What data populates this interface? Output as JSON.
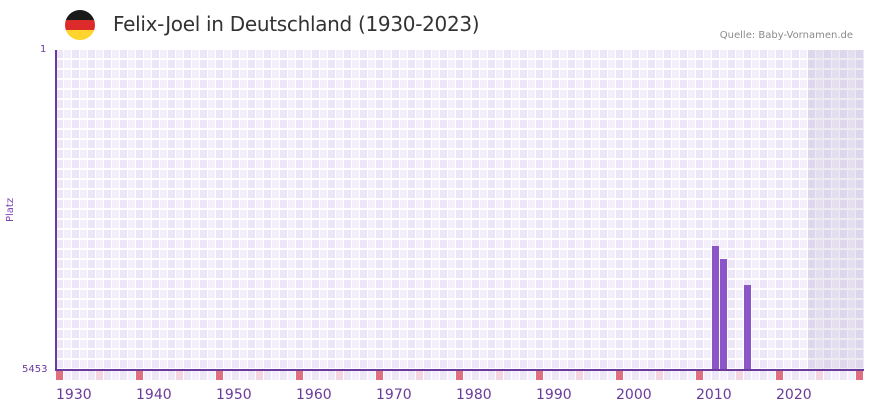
{
  "header": {
    "title": "Felix-Joel in Deutschland (1930-2023)",
    "source": "Quelle: Baby-Vornamen.de",
    "flag": [
      "#1a1a1a",
      "#dd2a2a",
      "#fdd42b"
    ]
  },
  "axes": {
    "y_label": "Platz",
    "y_top": "1",
    "y_bottom": "5453",
    "x_ticks": [
      "1930",
      "1940",
      "1950",
      "1960",
      "1970",
      "1980",
      "1990",
      "2000",
      "2010",
      "2020"
    ]
  },
  "colors": {
    "bar": "#8c55c8",
    "axis": "#6a3a9c",
    "decade_marker": "#e07080",
    "half_decade_marker": "#f5d5df"
  },
  "chart_data": {
    "type": "bar",
    "title": "Felix-Joel in Deutschland (1930-2023)",
    "xlabel": "",
    "ylabel": "Platz",
    "ylim": [
      5453,
      1
    ],
    "y_inverted": true,
    "x_range": [
      1930,
      2030
    ],
    "grid": true,
    "categories": [
      "2012",
      "2013",
      "2016"
    ],
    "values": [
      3340,
      3560,
      4000
    ],
    "shaded_region": [
      2024,
      2030
    ],
    "source": "Quelle: Baby-Vornamen.de"
  }
}
